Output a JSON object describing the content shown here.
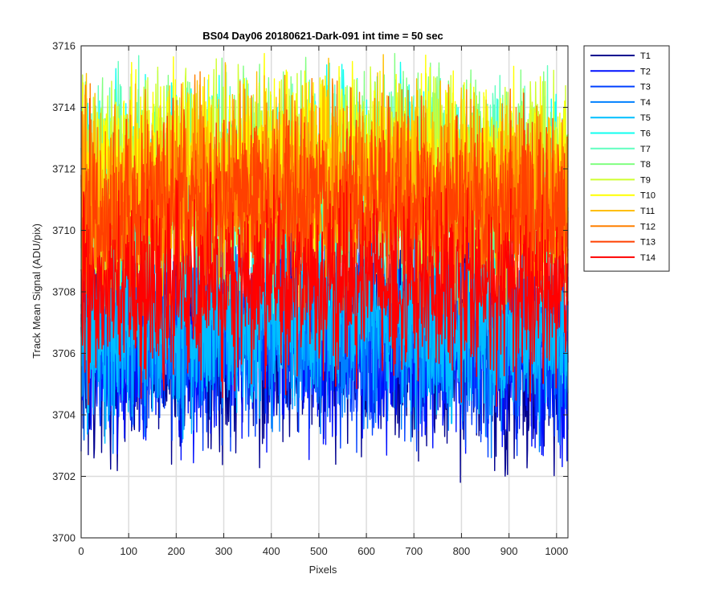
{
  "chart_data": {
    "type": "line",
    "title": "BS04 Day06 20180621-Dark-091 int time = 50 sec",
    "xlabel": "Pixels",
    "ylabel": "Track Mean Signal (ADU/pix)",
    "xlim": [
      0,
      1024
    ],
    "ylim": [
      3700,
      3716
    ],
    "xticks": [
      0,
      100,
      200,
      300,
      400,
      500,
      600,
      700,
      800,
      900,
      1000
    ],
    "yticks": [
      3700,
      3702,
      3704,
      3706,
      3708,
      3710,
      3712,
      3714,
      3716
    ],
    "grid": true,
    "legend_position": "outside-top-right",
    "x_points": 1024,
    "series": [
      {
        "name": "T1",
        "color": "#00008f",
        "mean": 3706.0,
        "amplitude": 1.6
      },
      {
        "name": "T2",
        "color": "#0010ff",
        "mean": 3706.2,
        "amplitude": 1.6
      },
      {
        "name": "T3",
        "color": "#0040ff",
        "mean": 3706.4,
        "amplitude": 1.5
      },
      {
        "name": "T4",
        "color": "#0080ff",
        "mean": 3706.6,
        "amplitude": 1.5
      },
      {
        "name": "T5",
        "color": "#00bfff",
        "mean": 3707.0,
        "amplitude": 1.5
      },
      {
        "name": "T6",
        "color": "#10ffef",
        "mean": 3711.2,
        "amplitude": 1.6
      },
      {
        "name": "T7",
        "color": "#60ffbf",
        "mean": 3711.4,
        "amplitude": 1.6
      },
      {
        "name": "T8",
        "color": "#80ff80",
        "mean": 3711.6,
        "amplitude": 1.6
      },
      {
        "name": "T9",
        "color": "#cfff30",
        "mean": 3711.8,
        "amplitude": 1.5
      },
      {
        "name": "T10",
        "color": "#ffff00",
        "mean": 3711.7,
        "amplitude": 1.5
      },
      {
        "name": "T11",
        "color": "#ffbf00",
        "mean": 3711.4,
        "amplitude": 1.5
      },
      {
        "name": "T12",
        "color": "#ff8000",
        "mean": 3711.0,
        "amplitude": 1.5
      },
      {
        "name": "T13",
        "color": "#ff4000",
        "mean": 3710.6,
        "amplitude": 1.5
      },
      {
        "name": "T14",
        "color": "#ff0000",
        "mean": 3708.0,
        "amplitude": 1.4
      }
    ]
  }
}
